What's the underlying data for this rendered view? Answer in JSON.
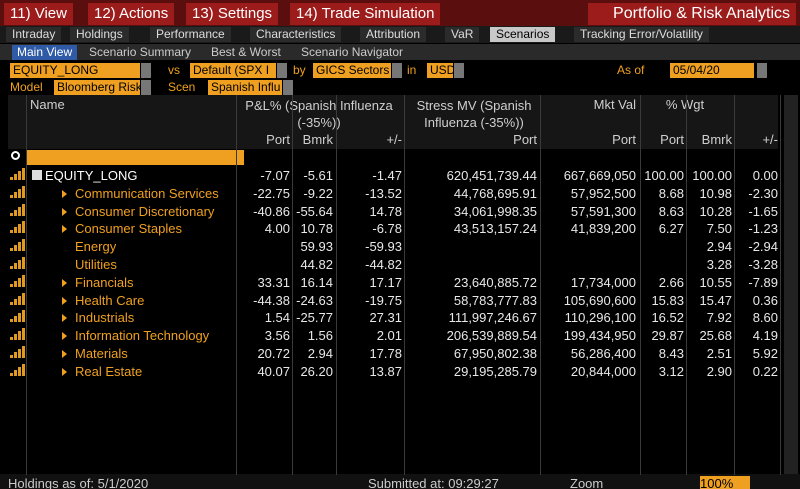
{
  "menu": {
    "items": [
      "11) View",
      "12) Actions",
      "13) Settings",
      "14) Trade Simulation"
    ],
    "title": "Portfolio & Risk Analytics"
  },
  "tabs": [
    "Intraday",
    "Holdings",
    "Performance",
    "Characteristics",
    "Attribution",
    "VaR",
    "Scenarios",
    "Tracking Error/Volatility"
  ],
  "active_tab": 6,
  "subtabs": [
    "Main View",
    "Scenario Summary",
    "Best & Worst",
    "Scenario Navigator"
  ],
  "controls": {
    "portfolio": "EQUITY_LONG",
    "vs_label": "vs",
    "benchmark": "Default (SPX I",
    "by_label": "by",
    "grouping": "GICS Sectors",
    "in_label": "in",
    "currency": "USD",
    "as_of_label": "As of",
    "as_of": "05/04/20",
    "model_label": "Model",
    "model": "Bloomberg Risk",
    "scen_label": "Scen",
    "scenario": "Spanish Influ"
  },
  "table": {
    "headers": {
      "name": "Name",
      "pl": "P&L% (Spanish Influenza (-35%))",
      "stress": "Stress MV (Spanish Influenza (-35%))",
      "mkt_val": "Mkt Val",
      "wgt": "% Wgt"
    },
    "subheaders": [
      "Port",
      "Bmrk",
      "+/-",
      "Port",
      "Port",
      "Port",
      "Bmrk",
      "+/-"
    ],
    "rows": [
      {
        "name": "EQUITY_LONG",
        "cells": [
          "-7.07",
          "-5.61",
          "-1.47",
          "620,451,739.44",
          "667,669,050",
          "100.00",
          "100.00",
          "0.00"
        ]
      },
      {
        "name": "Communication Services",
        "cells": [
          "-22.75",
          "-9.22",
          "-13.52",
          "44,768,695.91",
          "57,952,500",
          "8.68",
          "10.98",
          "-2.30"
        ]
      },
      {
        "name": "Consumer Discretionary",
        "cells": [
          "-40.86",
          "-55.64",
          "14.78",
          "34,061,998.35",
          "57,591,300",
          "8.63",
          "10.28",
          "-1.65"
        ]
      },
      {
        "name": "Consumer Staples",
        "cells": [
          "4.00",
          "10.78",
          "-6.78",
          "43,513,157.24",
          "41,839,200",
          "6.27",
          "7.50",
          "-1.23"
        ]
      },
      {
        "name": "Energy",
        "cells": [
          null,
          "59.93",
          "-59.93",
          null,
          null,
          null,
          "2.94",
          "-2.94"
        ]
      },
      {
        "name": "Utilities",
        "cells": [
          null,
          "44.82",
          "-44.82",
          null,
          null,
          null,
          "3.28",
          "-3.28"
        ]
      },
      {
        "name": "Financials",
        "cells": [
          "33.31",
          "16.14",
          "17.17",
          "23,640,885.72",
          "17,734,000",
          "2.66",
          "10.55",
          "-7.89"
        ]
      },
      {
        "name": "Health Care",
        "cells": [
          "-44.38",
          "-24.63",
          "-19.75",
          "58,783,777.83",
          "105,690,600",
          "15.83",
          "15.47",
          "0.36"
        ]
      },
      {
        "name": "Industrials",
        "cells": [
          "1.54",
          "-25.77",
          "27.31",
          "111,997,246.67",
          "110,296,100",
          "16.52",
          "7.92",
          "8.60"
        ]
      },
      {
        "name": "Information Technology",
        "cells": [
          "3.56",
          "1.56",
          "2.01",
          "206,539,889.54",
          "199,434,950",
          "29.87",
          "25.68",
          "4.19"
        ]
      },
      {
        "name": "Materials",
        "cells": [
          "20.72",
          "2.94",
          "17.78",
          "67,950,802.38",
          "56,286,400",
          "8.43",
          "2.51",
          "5.92"
        ]
      },
      {
        "name": "Real Estate",
        "cells": [
          "40.07",
          "26.20",
          "13.87",
          "29,195,285.79",
          "20,844,000",
          "3.12",
          "2.90",
          "0.22"
        ]
      }
    ]
  },
  "footer": {
    "holdings": "Holdings as of: 5/1/2020",
    "submitted": "Submitted at: 09:29:27",
    "zoom": "Zoom",
    "zoom_value": "100%"
  }
}
